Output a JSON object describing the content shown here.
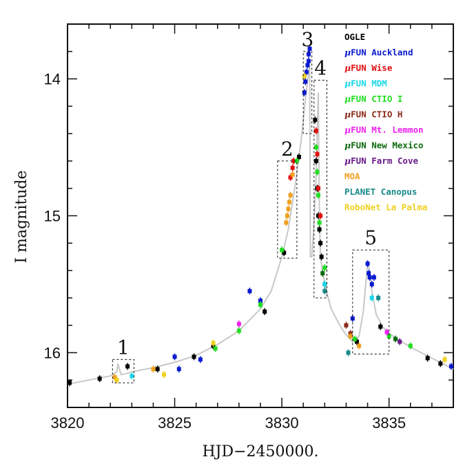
{
  "chart_data": {
    "type": "scatter",
    "xlabel": "HJD−2450000.",
    "ylabel": "I magnitude",
    "xlim": [
      3820,
      3838
    ],
    "ylim": [
      16.4,
      13.6
    ],
    "y_inverted": true,
    "grid": false,
    "legend_placement": "top-right",
    "x_ticks": [
      3820,
      3825,
      3830,
      3835
    ],
    "y_ticks": [
      14,
      15,
      16
    ],
    "x_tick_labels": [
      "3820",
      "3825",
      "3830",
      "3835"
    ],
    "y_tick_labels": [
      "14",
      "15",
      "16"
    ],
    "colors": {
      "model_curve": "#c8c8c8",
      "axes": "#111111"
    },
    "legend": [
      {
        "prefix": "",
        "name": "OGLE",
        "color": "#000000"
      },
      {
        "prefix": "μ",
        "name": "FUN Auckland",
        "color": "#0a1ad0"
      },
      {
        "prefix": "μ",
        "name": "FUN Wise",
        "color": "#e01010"
      },
      {
        "prefix": "μ",
        "name": "FUN MDM",
        "color": "#18d8e8"
      },
      {
        "prefix": "μ",
        "name": "FUN CTIO I",
        "color": "#22dd22"
      },
      {
        "prefix": "μ",
        "name": "FUN CTIO H",
        "color": "#8b2a1a"
      },
      {
        "prefix": "μ",
        "name": "FUN Mt. Lemmon",
        "color": "#ee22ee"
      },
      {
        "prefix": "μ",
        "name": "FUN New Mexico",
        "color": "#0d6b0d"
      },
      {
        "prefix": "μ",
        "name": "FUN Farm Cove",
        "color": "#6a1a8a"
      },
      {
        "prefix": "",
        "name": "MOA",
        "color": "#f0a020"
      },
      {
        "prefix": "",
        "name": "PLANET Canopus",
        "color": "#1a8a8a"
      },
      {
        "prefix": "",
        "name": "RoboNet La Palma",
        "color": "#f0d020"
      }
    ],
    "boxes": [
      {
        "label": "1",
        "x0": 3822.1,
        "x1": 3823.1,
        "y0": 16.05,
        "y1": 16.22
      },
      {
        "label": "2",
        "x0": 3829.8,
        "x1": 3830.7,
        "y0": 14.6,
        "y1": 15.31
      },
      {
        "label": "3",
        "x0": 3831.0,
        "x1": 3831.4,
        "y0": 13.8,
        "y1": 14.4
      },
      {
        "label": "4",
        "x0": 3831.5,
        "x1": 3832.1,
        "y0": 14.01,
        "y1": 15.6
      },
      {
        "label": "5",
        "x0": 3833.3,
        "x1": 3835.0,
        "y0": 15.25,
        "y1": 16.01
      }
    ],
    "model_curve": {
      "x": [
        3820.0,
        3821.0,
        3822.0,
        3822.3,
        3822.35,
        3822.5,
        3822.8,
        3823.0,
        3824.0,
        3825.0,
        3826.0,
        3827.0,
        3828.0,
        3829.0,
        3829.5,
        3830.0,
        3830.3,
        3830.6,
        3830.9,
        3831.1,
        3831.25,
        3831.3,
        3831.33,
        3831.4,
        3831.5,
        3831.6,
        3831.7,
        3831.75,
        3831.8,
        3832.0,
        3832.3,
        3832.7,
        3833.0,
        3833.3,
        3833.6,
        3833.8,
        3834.0,
        3834.1,
        3834.2,
        3834.4,
        3834.7,
        3835.0,
        3835.5,
        3836.0,
        3836.5,
        3837.0,
        3837.5,
        3838.0
      ],
      "y": [
        16.23,
        16.2,
        16.17,
        16.14,
        16.08,
        16.16,
        16.15,
        16.14,
        16.11,
        16.07,
        16.02,
        15.94,
        15.84,
        15.68,
        15.55,
        15.3,
        15.1,
        14.8,
        14.45,
        14.15,
        13.95,
        13.9,
        15.3,
        15.3,
        15.05,
        14.7,
        14.1,
        15.0,
        15.3,
        15.5,
        15.68,
        15.8,
        15.87,
        15.92,
        15.88,
        15.7,
        15.35,
        15.4,
        15.55,
        15.72,
        15.81,
        15.86,
        15.91,
        15.96,
        16.0,
        16.04,
        16.08,
        16.12
      ]
    },
    "series": [
      {
        "name": "OGLE",
        "color": "#000000",
        "x": [
          3820.1,
          3821.5,
          3822.8,
          3824.2,
          3825.9,
          3826.8,
          3829.2,
          3830.1,
          3830.8,
          3831.55,
          3831.6,
          3831.65,
          3831.7,
          3831.75,
          3831.8,
          3831.85,
          3832.0,
          3833.5,
          3834.6,
          3836.8,
          3837.4
        ],
        "y": [
          16.22,
          16.19,
          16.1,
          16.12,
          16.03,
          15.95,
          15.7,
          15.27,
          14.57,
          14.3,
          14.6,
          14.8,
          15.0,
          15.1,
          15.2,
          15.3,
          15.5,
          15.92,
          15.81,
          16.04,
          16.08
        ]
      },
      {
        "name": "FUN Auckland",
        "color": "#0a1ad0",
        "x": [
          3825.0,
          3825.2,
          3826.2,
          3828.5,
          3829.0,
          3831.05,
          3831.1,
          3831.15,
          3831.2,
          3831.25,
          3831.25,
          3831.3,
          3833.3,
          3834.0,
          3834.05,
          3834.1,
          3834.2,
          3834.3,
          3837.9
        ],
        "y": [
          16.03,
          16.12,
          16.05,
          15.55,
          15.62,
          14.1,
          14.02,
          13.95,
          13.9,
          13.87,
          13.82,
          13.78,
          15.75,
          15.35,
          15.42,
          15.45,
          15.5,
          15.45,
          16.1
        ]
      },
      {
        "name": "FUN Wise",
        "color": "#e01010",
        "x": [
          3830.4,
          3830.5,
          3830.55,
          3831.6,
          3831.65,
          3831.7,
          3831.8
        ],
        "y": [
          14.72,
          14.65,
          14.6,
          14.38,
          14.55,
          14.8,
          15.0
        ]
      },
      {
        "name": "FUN MDM",
        "color": "#18d8e8",
        "x": [
          3823.0,
          3832.0,
          3834.2
        ],
        "y": [
          16.17,
          15.5,
          15.6
        ]
      },
      {
        "name": "FUN CTIO I",
        "color": "#22dd22",
        "x": [
          3826.9,
          3828.0,
          3829.0,
          3830.0,
          3830.7,
          3831.6,
          3831.65,
          3831.7,
          3831.75,
          3832.0,
          3833.4,
          3835.0,
          3836.0
        ],
        "y": [
          15.97,
          15.84,
          15.65,
          15.25,
          14.6,
          14.5,
          14.68,
          14.85,
          15.05,
          15.38,
          15.9,
          15.88,
          15.95
        ]
      },
      {
        "name": "FUN CTIO H",
        "color": "#8b2a1a",
        "x": [
          3833.0,
          3833.2
        ],
        "y": [
          15.8,
          15.86
        ]
      },
      {
        "name": "FUN Mt. Lemmon",
        "color": "#ee22ee",
        "x": [
          3828.0,
          3834.9
        ],
        "y": [
          15.79,
          15.85
        ]
      },
      {
        "name": "FUN New Mexico",
        "color": "#0d6b0d",
        "x": [
          3831.9,
          3835.3
        ],
        "y": [
          15.42,
          15.9
        ]
      },
      {
        "name": "FUN Farm Cove",
        "color": "#6a1a8a",
        "x": [
          3835.5
        ],
        "y": [
          15.92
        ]
      },
      {
        "name": "MOA",
        "color": "#f0a020",
        "x": [
          3822.2,
          3824.0,
          3830.2,
          3830.25,
          3830.3,
          3830.35,
          3830.4,
          3830.5,
          3833.2,
          3833.6
        ],
        "y": [
          16.18,
          16.12,
          15.05,
          15.0,
          14.95,
          14.9,
          14.85,
          14.7,
          15.88,
          15.95
        ]
      },
      {
        "name": "PLANET Canopus",
        "color": "#1a8a8a",
        "x": [
          3832.0,
          3833.1,
          3834.5
        ],
        "y": [
          15.55,
          16.0,
          15.6
        ]
      },
      {
        "name": "RoboNet La Palma",
        "color": "#f0d020",
        "x": [
          3822.3,
          3824.5,
          3826.8,
          3831.05,
          3837.6
        ],
        "y": [
          16.2,
          16.16,
          15.93,
          13.98,
          16.05
        ]
      }
    ]
  }
}
